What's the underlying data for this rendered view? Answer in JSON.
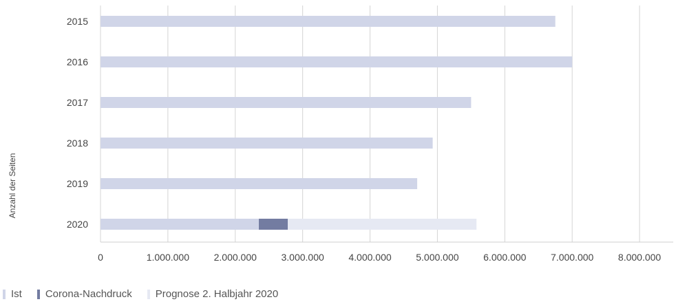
{
  "chart_data": {
    "type": "bar",
    "orientation": "horizontal",
    "stacked": true,
    "ylabel": "Anzahl der Seiten",
    "categories": [
      "2015",
      "2016",
      "2017",
      "2018",
      "2019",
      "2020"
    ],
    "series": [
      {
        "name": "Ist",
        "color": "#d0d5e8",
        "values": [
          6750000,
          7000000,
          5500000,
          4930000,
          4700000,
          2350000
        ]
      },
      {
        "name": "Corona-Nachdruck",
        "color": "#737ca1",
        "values": [
          0,
          0,
          0,
          0,
          0,
          430000
        ]
      },
      {
        "name": "Prognose 2. Halbjahr 2020",
        "color": "#e6e9f3",
        "values": [
          0,
          0,
          0,
          0,
          0,
          2800000
        ]
      }
    ],
    "xlim": [
      0,
      8500000
    ],
    "xticks": [
      0,
      1000000,
      2000000,
      3000000,
      4000000,
      5000000,
      6000000,
      7000000,
      8000000
    ],
    "xtick_labels": [
      "0",
      "1.000.000",
      "2.000.000",
      "3.000.000",
      "4.000.000",
      "5.000.000",
      "6.000.000",
      "7.000.000",
      "8.000.000"
    ],
    "grid": "vertical",
    "legend_position": "bottom-left"
  }
}
